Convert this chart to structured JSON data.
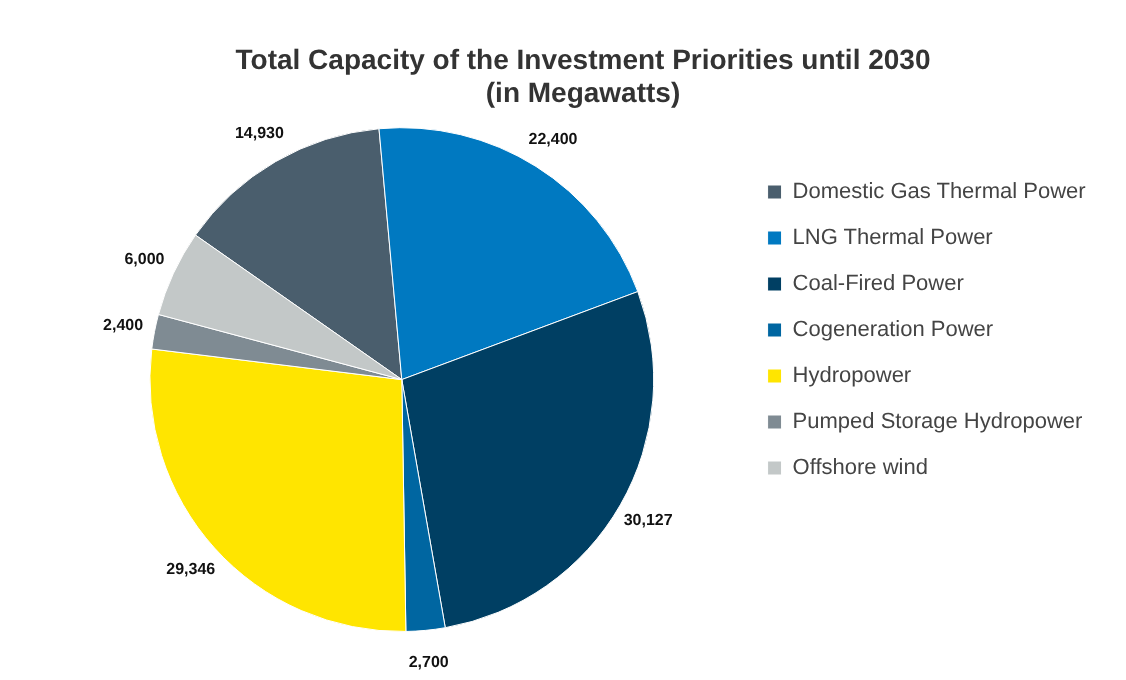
{
  "chart_data": {
    "type": "pie",
    "title": "Total Capacity of the Investment Priorities until 2030\n(in Megawatts)",
    "categories": [
      "Domestic Gas Thermal Power",
      "LNG Thermal Power",
      "Coal-Fired Power",
      "Cogeneration Power",
      "Hydropower",
      "Pumped Storage Hydropower",
      "Offshore wind"
    ],
    "values": [
      14930,
      22400,
      30127,
      2700,
      29346,
      2400,
      6000
    ],
    "colors": [
      "#4a5e6d",
      "#0079c1",
      "#003f63",
      "#0066a1",
      "#ffe500",
      "#7f8b93",
      "#c3c8c8"
    ],
    "value_labels": [
      "14,930",
      "22,400",
      "30,127",
      "2,700",
      "29,346",
      "2,400",
      "6,000"
    ],
    "legend": "right"
  }
}
